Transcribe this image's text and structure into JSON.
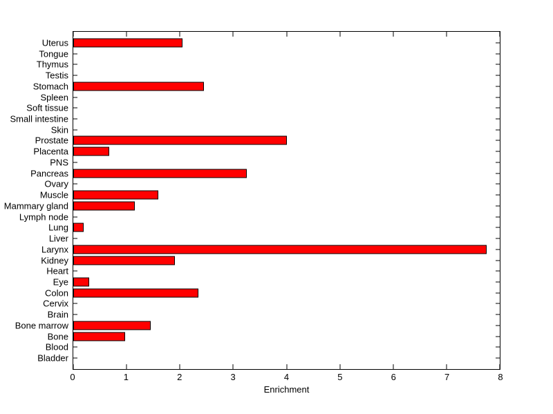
{
  "figure": {
    "background": "#ffffff",
    "plot_background": "#ffffff",
    "axis_color": "#000000"
  },
  "chart_data": {
    "type": "bar",
    "orientation": "horizontal",
    "title": "",
    "xlabel": "Enrichment",
    "ylabel": "",
    "xlim": [
      0,
      8
    ],
    "xticks": [
      0,
      1,
      2,
      3,
      4,
      5,
      6,
      7,
      8
    ],
    "grid": false,
    "legend": false,
    "bar_color": "#ff0000",
    "bar_edge_color": "#000000",
    "categories": [
      "Uterus",
      "Tongue",
      "Thymus",
      "Testis",
      "Stomach",
      "Spleen",
      "Soft tissue",
      "Small intestine",
      "Skin",
      "Prostate",
      "Placenta",
      "PNS",
      "Pancreas",
      "Ovary",
      "Muscle",
      "Mammary gland",
      "Lymph node",
      "Lung",
      "Liver",
      "Larynx",
      "Kidney",
      "Heart",
      "Eye",
      "Colon",
      "Cervix",
      "Brain",
      "Bone marrow",
      "Bone",
      "Blood",
      "Bladder"
    ],
    "values": [
      2.05,
      0,
      0,
      0,
      2.45,
      0,
      0,
      0,
      0,
      4.0,
      0.68,
      0,
      3.25,
      0,
      1.6,
      1.15,
      0,
      0.2,
      0,
      7.75,
      1.9,
      0,
      0.3,
      2.35,
      0,
      0,
      1.45,
      0.97,
      0,
      0
    ]
  }
}
